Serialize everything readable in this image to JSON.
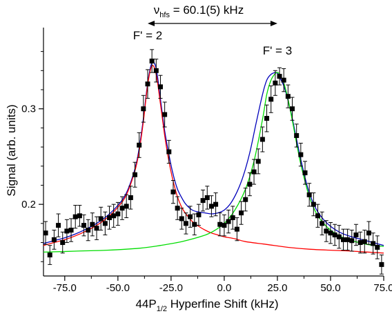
{
  "chart_data": {
    "type": "scatter",
    "xlabel_main": "44P",
    "xlabel_sub": "1/2",
    "xlabel_rest": " Hyperfine Shift (kHz)",
    "ylabel": "Signal (arb. units)",
    "xlim": [
      -85,
      75
    ],
    "ylim": [
      0.125,
      0.385
    ],
    "x_ticks": [
      -75.0,
      -50.0,
      -25.0,
      0.0,
      25.0,
      50.0,
      75.0
    ],
    "x_tick_labels": [
      "-75.0",
      "-50.0",
      "-25.0",
      "0.0",
      "25.0",
      "50.0",
      "75.0"
    ],
    "y_ticks": [
      0.2,
      0.3
    ],
    "y_tick_labels": [
      "0.2",
      "0.3"
    ],
    "grid": false,
    "annotations": {
      "hfs_nu": "ν",
      "hfs_sub": "hfs",
      "hfs_rest": " = 60.1(5) kHz",
      "peak1": "F' = 2",
      "peak2": "F' = 3"
    },
    "hfs_arrow_x": [
      -36.0,
      25.0
    ],
    "peak1_label_x": -36.0,
    "peak2_label_x": 25.0,
    "series": [
      {
        "kind": "points",
        "color": "#000000",
        "points": [
          {
            "x": -84,
            "y": 0.17,
            "err": 0.012
          },
          {
            "x": -82,
            "y": 0.147,
            "err": 0.01
          },
          {
            "x": -80,
            "y": 0.163,
            "err": 0.01
          },
          {
            "x": -78,
            "y": 0.178,
            "err": 0.012
          },
          {
            "x": -76,
            "y": 0.16,
            "err": 0.011
          },
          {
            "x": -74,
            "y": 0.172,
            "err": 0.012
          },
          {
            "x": -72,
            "y": 0.173,
            "err": 0.012
          },
          {
            "x": -70,
            "y": 0.187,
            "err": 0.012
          },
          {
            "x": -68,
            "y": 0.188,
            "err": 0.011
          },
          {
            "x": -66,
            "y": 0.178,
            "err": 0.011
          },
          {
            "x": -64,
            "y": 0.173,
            "err": 0.011
          },
          {
            "x": -62,
            "y": 0.179,
            "err": 0.012
          },
          {
            "x": -60,
            "y": 0.175,
            "err": 0.012
          },
          {
            "x": -58,
            "y": 0.185,
            "err": 0.012
          },
          {
            "x": -56,
            "y": 0.18,
            "err": 0.012
          },
          {
            "x": -54,
            "y": 0.186,
            "err": 0.012
          },
          {
            "x": -52,
            "y": 0.188,
            "err": 0.012
          },
          {
            "x": -50,
            "y": 0.19,
            "err": 0.012
          },
          {
            "x": -48,
            "y": 0.196,
            "err": 0.012
          },
          {
            "x": -46,
            "y": 0.198,
            "err": 0.012
          },
          {
            "x": -44,
            "y": 0.207,
            "err": 0.012
          },
          {
            "x": -42,
            "y": 0.231,
            "err": 0.013
          },
          {
            "x": -40,
            "y": 0.262,
            "err": 0.013
          },
          {
            "x": -38,
            "y": 0.3,
            "err": 0.014
          },
          {
            "x": -36,
            "y": 0.326,
            "err": 0.015
          },
          {
            "x": -34,
            "y": 0.35,
            "err": 0.012
          },
          {
            "x": -32,
            "y": 0.34,
            "err": 0.012
          },
          {
            "x": -30,
            "y": 0.323,
            "err": 0.012
          },
          {
            "x": -28,
            "y": 0.294,
            "err": 0.013
          },
          {
            "x": -26,
            "y": 0.255,
            "err": 0.012
          },
          {
            "x": -24,
            "y": 0.213,
            "err": 0.012
          },
          {
            "x": -22,
            "y": 0.196,
            "err": 0.012
          },
          {
            "x": -20,
            "y": 0.185,
            "err": 0.011
          },
          {
            "x": -18,
            "y": 0.18,
            "err": 0.011
          },
          {
            "x": -16,
            "y": 0.187,
            "err": 0.011
          },
          {
            "x": -14,
            "y": 0.179,
            "err": 0.011
          },
          {
            "x": -12,
            "y": 0.189,
            "err": 0.011
          },
          {
            "x": -10,
            "y": 0.204,
            "err": 0.011
          },
          {
            "x": -8,
            "y": 0.207,
            "err": 0.012
          },
          {
            "x": -6,
            "y": 0.198,
            "err": 0.011
          },
          {
            "x": -4,
            "y": 0.2,
            "err": 0.012
          },
          {
            "x": -2,
            "y": 0.179,
            "err": 0.012
          },
          {
            "x": 0,
            "y": 0.178,
            "err": 0.011
          },
          {
            "x": 2,
            "y": 0.182,
            "err": 0.012
          },
          {
            "x": 4,
            "y": 0.186,
            "err": 0.012
          },
          {
            "x": 6,
            "y": 0.174,
            "err": 0.012
          },
          {
            "x": 8,
            "y": 0.191,
            "err": 0.012
          },
          {
            "x": 10,
            "y": 0.205,
            "err": 0.012
          },
          {
            "x": 12,
            "y": 0.221,
            "err": 0.012
          },
          {
            "x": 14,
            "y": 0.234,
            "err": 0.013
          },
          {
            "x": 16,
            "y": 0.245,
            "err": 0.013
          },
          {
            "x": 18,
            "y": 0.268,
            "err": 0.013
          },
          {
            "x": 20,
            "y": 0.29,
            "err": 0.014
          },
          {
            "x": 22,
            "y": 0.31,
            "err": 0.014
          },
          {
            "x": 24,
            "y": 0.327,
            "err": 0.013
          },
          {
            "x": 26,
            "y": 0.334,
            "err": 0.009
          },
          {
            "x": 28,
            "y": 0.33,
            "err": 0.012
          },
          {
            "x": 30,
            "y": 0.313,
            "err": 0.012
          },
          {
            "x": 32,
            "y": 0.3,
            "err": 0.012
          },
          {
            "x": 34,
            "y": 0.272,
            "err": 0.012
          },
          {
            "x": 36,
            "y": 0.252,
            "err": 0.012
          },
          {
            "x": 38,
            "y": 0.233,
            "err": 0.012
          },
          {
            "x": 40,
            "y": 0.21,
            "err": 0.012
          },
          {
            "x": 42,
            "y": 0.2,
            "err": 0.012
          },
          {
            "x": 44,
            "y": 0.188,
            "err": 0.012
          },
          {
            "x": 46,
            "y": 0.18,
            "err": 0.012
          },
          {
            "x": 48,
            "y": 0.172,
            "err": 0.011
          },
          {
            "x": 50,
            "y": 0.17,
            "err": 0.011
          },
          {
            "x": 52,
            "y": 0.168,
            "err": 0.011
          },
          {
            "x": 54,
            "y": 0.166,
            "err": 0.012
          },
          {
            "x": 56,
            "y": 0.163,
            "err": 0.011
          },
          {
            "x": 58,
            "y": 0.163,
            "err": 0.011
          },
          {
            "x": 60,
            "y": 0.162,
            "err": 0.011
          },
          {
            "x": 62,
            "y": 0.168,
            "err": 0.011
          },
          {
            "x": 64,
            "y": 0.16,
            "err": 0.011
          },
          {
            "x": 66,
            "y": 0.161,
            "err": 0.012
          },
          {
            "x": 68,
            "y": 0.17,
            "err": 0.012
          },
          {
            "x": 70,
            "y": 0.159,
            "err": 0.011
          },
          {
            "x": 72,
            "y": 0.155,
            "err": 0.012
          },
          {
            "x": 74,
            "y": 0.137,
            "err": 0.01
          }
        ]
      },
      {
        "kind": "curve",
        "color": "#0000bb",
        "x": [
          -85,
          -80,
          -75,
          -70,
          -65,
          -60,
          -55,
          -50,
          -46,
          -42,
          -40,
          -38,
          -36,
          -34,
          -32,
          -30,
          -28,
          -26,
          -24,
          -22,
          -20,
          -18,
          -15,
          -12,
          -9,
          -6,
          -3,
          0,
          3,
          6,
          9,
          12,
          15,
          18,
          20,
          22,
          24,
          25,
          26,
          28,
          30,
          32,
          34,
          36,
          38,
          40,
          43,
          46,
          50,
          55,
          60,
          65,
          70,
          75
        ],
        "y": [
          0.159,
          0.162,
          0.165,
          0.169,
          0.174,
          0.18,
          0.188,
          0.199,
          0.212,
          0.237,
          0.259,
          0.29,
          0.327,
          0.348,
          0.342,
          0.31,
          0.277,
          0.252,
          0.231,
          0.216,
          0.207,
          0.2,
          0.194,
          0.192,
          0.191,
          0.19,
          0.191,
          0.194,
          0.201,
          0.213,
          0.23,
          0.254,
          0.285,
          0.315,
          0.33,
          0.336,
          0.338,
          0.337,
          0.333,
          0.324,
          0.309,
          0.29,
          0.268,
          0.247,
          0.228,
          0.212,
          0.196,
          0.186,
          0.177,
          0.17,
          0.166,
          0.163,
          0.16,
          0.157
        ]
      },
      {
        "kind": "curve",
        "color": "#ff0000",
        "x": [
          -85,
          -80,
          -75,
          -70,
          -65,
          -60,
          -55,
          -50,
          -46,
          -42,
          -40,
          -38,
          -36,
          -34,
          -32,
          -30,
          -28,
          -26,
          -24,
          -22,
          -20,
          -18,
          -15,
          -12,
          -9,
          -6,
          -3,
          0,
          5,
          10,
          20,
          30,
          40,
          50,
          60,
          75
        ],
        "y": [
          0.157,
          0.16,
          0.163,
          0.167,
          0.172,
          0.178,
          0.186,
          0.197,
          0.21,
          0.235,
          0.256,
          0.287,
          0.325,
          0.345,
          0.336,
          0.305,
          0.272,
          0.245,
          0.224,
          0.208,
          0.197,
          0.19,
          0.182,
          0.177,
          0.173,
          0.17,
          0.168,
          0.166,
          0.164,
          0.161,
          0.158,
          0.155,
          0.153,
          0.152,
          0.151,
          0.149
        ]
      },
      {
        "kind": "curve",
        "color": "#00dd00",
        "x": [
          -85,
          -70,
          -55,
          -40,
          -30,
          -20,
          -10,
          -5,
          0,
          5,
          10,
          14,
          18,
          20,
          22,
          24,
          25,
          26,
          28,
          30,
          32,
          34,
          36,
          38,
          40,
          43,
          46,
          50,
          55,
          60,
          65,
          70,
          75
        ],
        "y": [
          0.15,
          0.151,
          0.152,
          0.154,
          0.157,
          0.161,
          0.167,
          0.172,
          0.18,
          0.194,
          0.216,
          0.245,
          0.289,
          0.315,
          0.33,
          0.337,
          0.338,
          0.336,
          0.327,
          0.31,
          0.288,
          0.264,
          0.242,
          0.224,
          0.208,
          0.192,
          0.182,
          0.173,
          0.166,
          0.162,
          0.159,
          0.157,
          0.156
        ]
      }
    ]
  }
}
